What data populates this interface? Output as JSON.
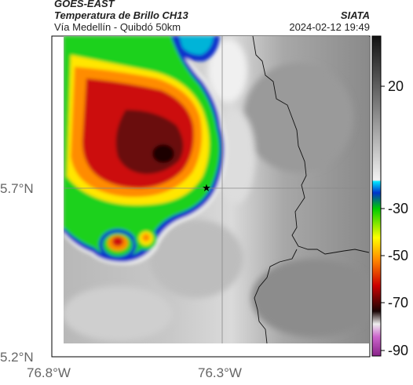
{
  "header": {
    "satellite": "GOES-EAST",
    "product": "Temperatura de Brillo CH13",
    "subtitle": "Vía Medellín - Quibdó 50km",
    "brand": "SIATA",
    "timestamp": "2024-02-12 19:49"
  },
  "axes": {
    "lat_ticks": [
      "5.7°N",
      "5.2°N"
    ],
    "lon_ticks": [
      "76.8°W",
      "76.3°W"
    ]
  },
  "colorbar": {
    "ticks": [
      "20",
      "-30",
      "-50",
      "-70",
      "-90"
    ]
  },
  "marker": {
    "symbol": "★"
  },
  "colors": {
    "cold_core": "#2a0a0a",
    "red": "#cc1111",
    "orange": "#ff8c00",
    "yellow": "#ffe600",
    "green": "#1fd11f",
    "blue": "#1133cc",
    "cyan": "#00b4d8"
  }
}
